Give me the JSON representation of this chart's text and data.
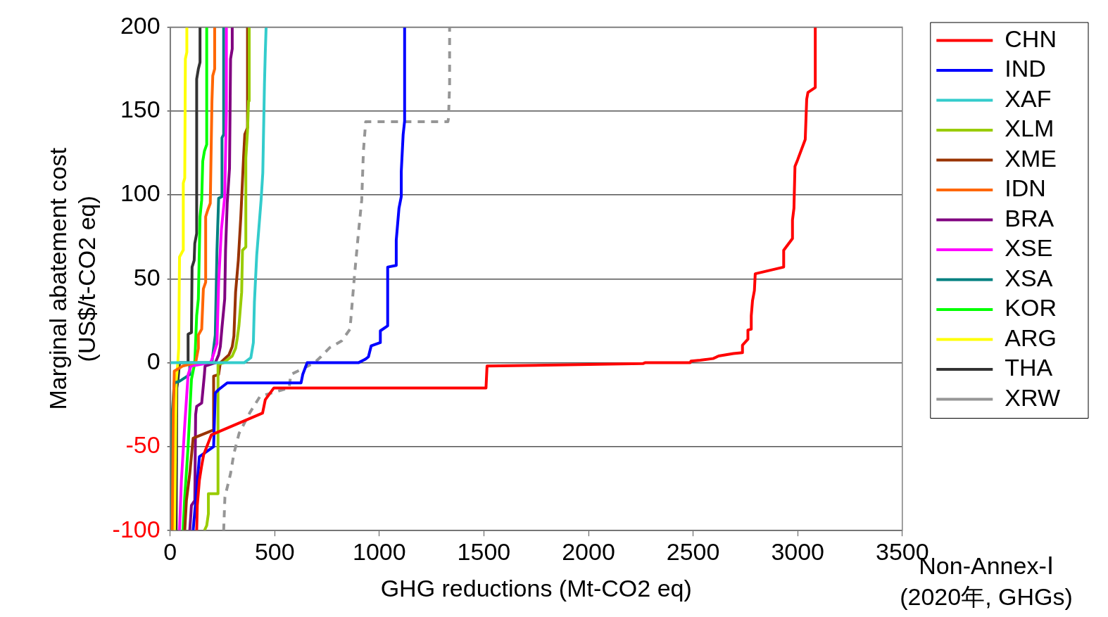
{
  "chart_data": {
    "type": "line",
    "xlabel": "GHG reductions (Mt-CO2 eq)",
    "ylabel": "Marginal abatement cost\n(US$/t-CO2 eq)",
    "xlim": [
      0,
      3500
    ],
    "ylim": [
      -100,
      200
    ],
    "xticks": [
      0,
      500,
      1000,
      1500,
      2000,
      2500,
      3000,
      3500
    ],
    "yticks": [
      -100,
      -50,
      0,
      50,
      100,
      150,
      200
    ],
    "grid": "y",
    "legend": "right",
    "marker": "none",
    "line_style": "solid",
    "annotations": [
      "Non-Annex-Ⅰ\n(2020年, GHGs)"
    ],
    "series": [
      {
        "name": "CHN",
        "color": "#ff0000",
        "x": [
          127,
          130,
          140,
          150,
          160,
          197,
          442,
          455,
          496,
          1510,
          1515,
          2260,
          2270,
          2486,
          2490,
          2534,
          2596,
          2622,
          2693,
          2736,
          2736,
          2762,
          2762,
          2778,
          2778,
          2784,
          2793,
          2797,
          2933,
          2933,
          2975,
          2975,
          2982,
          2987,
          3000,
          3036,
          3043,
          3049,
          3084,
          3084
        ],
        "values": [
          -100,
          -85,
          -70,
          -62,
          -55,
          -43,
          -30,
          -22,
          -15,
          -15,
          -2,
          -0.5,
          0,
          0,
          1,
          1.5,
          2.5,
          4,
          5.5,
          6,
          10.5,
          14,
          19.5,
          20,
          28,
          37,
          43,
          53,
          57,
          67,
          74,
          85,
          92,
          117,
          121,
          133,
          157,
          161,
          164,
          200
        ]
      },
      {
        "name": "IND",
        "color": "#0000ff",
        "x": [
          110,
          127,
          140,
          208,
          216,
          232,
          273,
          626,
          634,
          655,
          900,
          932,
          948,
          961,
          1005,
          1005,
          1040,
          1040,
          1081,
          1081,
          1094,
          1105,
          1105,
          1114,
          1121,
          1121
        ],
        "values": [
          -100,
          -76,
          -56,
          -50,
          -18,
          -16,
          -12,
          -12,
          -7,
          0,
          0,
          2,
          3.5,
          10,
          12,
          19,
          22,
          57,
          58,
          73,
          92,
          99,
          114,
          136,
          144,
          200
        ]
      },
      {
        "name": "XAF",
        "color": "#33cccc",
        "x": [
          0,
          354,
          386,
          398,
          403,
          414,
          435,
          443,
          451,
          455,
          459
        ],
        "values": [
          0,
          0,
          3,
          12,
          36,
          64,
          97,
          113,
          166,
          185,
          200
        ]
      },
      {
        "name": "XLM",
        "color": "#99cc00",
        "x": [
          164,
          175,
          183,
          183,
          229,
          229,
          255,
          297,
          313,
          321,
          329,
          342,
          346,
          362,
          362,
          370,
          375,
          378
        ],
        "values": [
          -100,
          -97,
          -90,
          -78,
          -78,
          -1,
          0,
          4,
          8.6,
          14.5,
          22,
          42,
          67,
          69,
          122,
          138,
          156,
          200
        ]
      },
      {
        "name": "XME",
        "color": "#993300",
        "x": [
          70,
          78,
          94,
          110,
          208,
          208,
          232,
          240,
          281,
          297,
          305,
          313,
          326,
          338,
          351,
          357,
          370,
          370
        ],
        "values": [
          -100,
          -82,
          -66,
          -45,
          -40,
          -8,
          -7,
          0,
          4.7,
          9.6,
          16,
          42,
          61,
          87,
          122,
          136,
          140,
          200
        ]
      },
      {
        "name": "IDN",
        "color": "#ff6600",
        "x": [
          10,
          15,
          20,
          60,
          122,
          135,
          135,
          151,
          159,
          170,
          170,
          180,
          192,
          200,
          204,
          213,
          213
        ],
        "values": [
          -100,
          -30,
          -5,
          -2,
          0,
          8.6,
          16.5,
          20,
          44,
          48,
          87,
          91,
          95,
          156,
          171,
          175,
          200
        ]
      },
      {
        "name": "BRA",
        "color": "#800080",
        "x": [
          94,
          102,
          118,
          122,
          127,
          151,
          164,
          167,
          216,
          232,
          240,
          248,
          261,
          265,
          273,
          284,
          289,
          297,
          297
        ],
        "values": [
          -100,
          -85,
          -82,
          -31,
          -26,
          -24,
          -7,
          -2,
          0,
          4.7,
          9.6,
          21,
          38,
          67,
          95,
          116,
          181,
          187,
          200
        ]
      },
      {
        "name": "XSE",
        "color": "#ff00ff",
        "x": [
          45,
          54,
          70,
          86,
          100,
          192,
          200,
          224,
          232,
          245,
          261,
          269,
          269
        ],
        "values": [
          -100,
          -70,
          -37,
          -7,
          -2,
          0,
          2,
          11.5,
          48,
          79,
          99,
          150,
          200
        ]
      },
      {
        "name": "XSA",
        "color": "#008080",
        "x": [
          5,
          10,
          20,
          45,
          94,
          94,
          200,
          208,
          216,
          224,
          232,
          248,
          248,
          256,
          256
        ],
        "values": [
          -100,
          -30,
          -12,
          -11,
          -7,
          0,
          0,
          8.6,
          16.5,
          67,
          98,
          99,
          134,
          136,
          200
        ]
      },
      {
        "name": "KOR",
        "color": "#00ff00",
        "x": [
          62,
          70,
          86,
          102,
          118,
          127,
          135,
          143,
          151,
          156,
          164,
          175,
          175
        ],
        "values": [
          -100,
          -80,
          -50,
          -10,
          0,
          28,
          38,
          87,
          97,
          120,
          126,
          130,
          200
        ]
      },
      {
        "name": "ARG",
        "color": "#ffff00",
        "x": [
          21,
          29,
          37,
          41,
          45,
          62,
          63,
          70,
          73,
          80,
          80
        ],
        "values": [
          -100,
          -11,
          0,
          8.6,
          63,
          67,
          107,
          110,
          181,
          185,
          200
        ]
      },
      {
        "name": "THA",
        "color": "#333333",
        "x": [
          29,
          32,
          37,
          45,
          86,
          86,
          102,
          105,
          115,
          118,
          127,
          127,
          135,
          143,
          143
        ],
        "values": [
          -100,
          -15,
          -11,
          0,
          0,
          17,
          18,
          57,
          61,
          71,
          77,
          169,
          175,
          179,
          200
        ]
      },
      {
        "name": "XRW",
        "color": "#969696",
        "line_style": "dashed",
        "x": [
          256,
          262,
          289,
          305,
          330,
          380,
          430,
          569,
          577,
          642,
          690,
          720,
          763,
          820,
          860,
          880,
          900,
          916,
          924,
          935,
          1328,
          1331,
          1336,
          1336
        ],
        "values": [
          -100,
          -80,
          -66,
          -54,
          -42,
          -30,
          -20,
          -15,
          -7,
          -3,
          0,
          3.5,
          9,
          13,
          20,
          50,
          77,
          97,
          126,
          143.6,
          143.6,
          146,
          166,
          200
        ]
      }
    ]
  }
}
